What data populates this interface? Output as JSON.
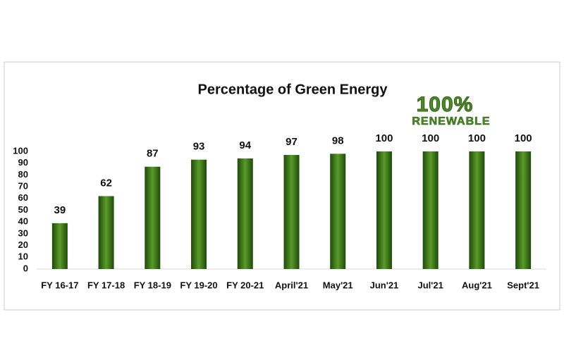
{
  "chart_data": {
    "type": "bar",
    "title": "Percentage of Green Energy",
    "annotations": [
      "100%",
      "RENEWABLE"
    ],
    "categories": [
      "FY 16-17",
      "FY 17-18",
      "FY 18-19",
      "FY 19-20",
      "FY 20-21",
      "April'21",
      "May'21",
      "Jun'21",
      "Jul'21",
      "Aug'21",
      "Sept'21"
    ],
    "values": [
      39,
      62,
      87,
      93,
      94,
      97,
      98,
      100,
      100,
      100,
      100
    ],
    "color": "#5a9a2a",
    "ylim": [
      0,
      100
    ],
    "yticks": [
      0,
      10,
      20,
      30,
      40,
      50,
      60,
      70,
      80,
      90,
      100
    ],
    "grid": false
  }
}
